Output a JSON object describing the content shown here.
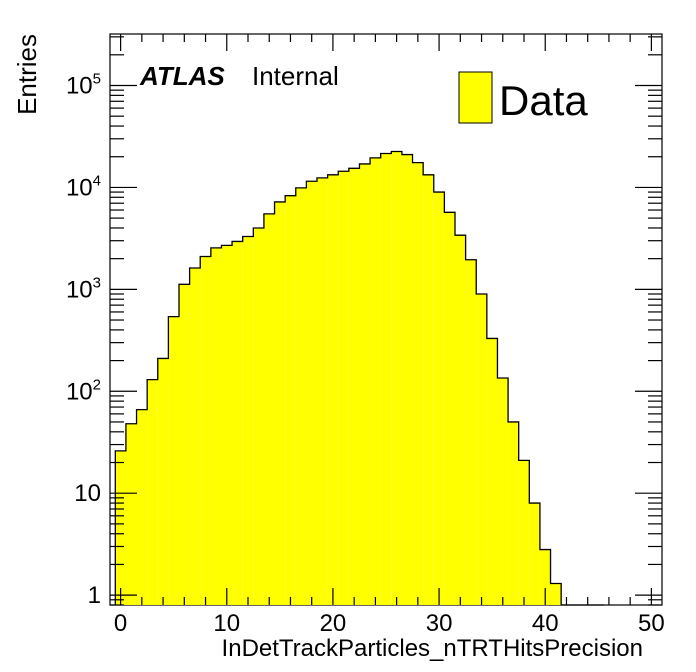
{
  "chart_data": {
    "type": "bar",
    "title": "",
    "xlabel": "InDetTrackParticles_nTRTHitsPrecision",
    "ylabel": "Entries",
    "yscale": "log",
    "xlim": [
      -1,
      51
    ],
    "ylim": [
      0.8,
      320000
    ],
    "bin_width": 1,
    "x": [
      0,
      1,
      2,
      3,
      4,
      5,
      6,
      7,
      8,
      9,
      10,
      11,
      12,
      13,
      14,
      15,
      16,
      17,
      18,
      19,
      20,
      21,
      22,
      23,
      24,
      25,
      26,
      27,
      28,
      29,
      30,
      31,
      32,
      33,
      34,
      35,
      36,
      37,
      38,
      39,
      40,
      41,
      42,
      43,
      44,
      45,
      46,
      47,
      48,
      49
    ],
    "series": [
      {
        "name": "Data",
        "color": "#ffff00",
        "values": [
          26,
          48,
          66,
          130,
          210,
          540,
          1120,
          1620,
          2100,
          2550,
          2700,
          2950,
          3300,
          4000,
          5500,
          7200,
          8300,
          9900,
          11500,
          12400,
          13300,
          14400,
          15400,
          17000,
          19500,
          21500,
          22500,
          21000,
          17500,
          13300,
          9000,
          5700,
          3400,
          1950,
          900,
          330,
          135,
          50,
          21,
          8,
          2.8,
          1.3,
          0.5,
          0.5,
          0.5,
          0.5,
          0,
          0,
          0,
          0
        ]
      }
    ],
    "xticks": [
      "0",
      "10",
      "20",
      "30",
      "40",
      "50"
    ],
    "yticks": [
      "1",
      "10",
      "10^2",
      "10^3",
      "10^4",
      "10^5"
    ],
    "legend": {
      "position": "top-right",
      "entries": [
        "Data"
      ]
    },
    "annotation": {
      "experiment": "ATLAS",
      "status": "Internal"
    },
    "grid": false
  }
}
